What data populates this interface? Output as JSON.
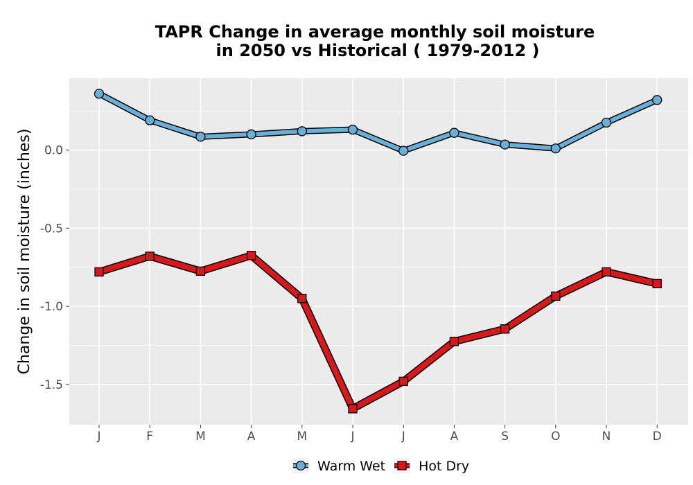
{
  "chart_data": {
    "type": "line",
    "title": "TAPR  Change in average monthly soil moisture",
    "subtitle": "in 2050 vs Historical ( 1979-2012 )",
    "xlabel": "",
    "ylabel": "Change in soil moisture (inches)",
    "categories": [
      "J",
      "F",
      "M",
      "A",
      "M",
      "J",
      "J",
      "A",
      "S",
      "O",
      "N",
      "D"
    ],
    "ylim": [
      -1.75,
      0.45
    ],
    "yticks": [
      0.0,
      -0.5,
      -1.0,
      -1.5
    ],
    "ytick_labels": [
      "0.0",
      "-0.5",
      "-1.0",
      "-1.5"
    ],
    "grid": true,
    "legend_position": "bottom",
    "series": [
      {
        "name": "Warm Wet",
        "marker": "circle",
        "color": "#6baed6",
        "values": [
          0.36,
          0.19,
          0.085,
          0.1,
          0.12,
          0.13,
          -0.005,
          0.11,
          0.035,
          0.01,
          0.175,
          0.32
        ]
      },
      {
        "name": "Hot Dry",
        "marker": "square",
        "color": "#d7191c",
        "values": [
          -0.78,
          -0.68,
          -0.775,
          -0.675,
          -0.95,
          -1.655,
          -1.48,
          -1.225,
          -1.145,
          -0.935,
          -0.78,
          -0.855
        ]
      }
    ]
  },
  "colors": {
    "panel_background": "#ebebeb",
    "grid": "#ffffff",
    "line_outline": "#000000"
  }
}
